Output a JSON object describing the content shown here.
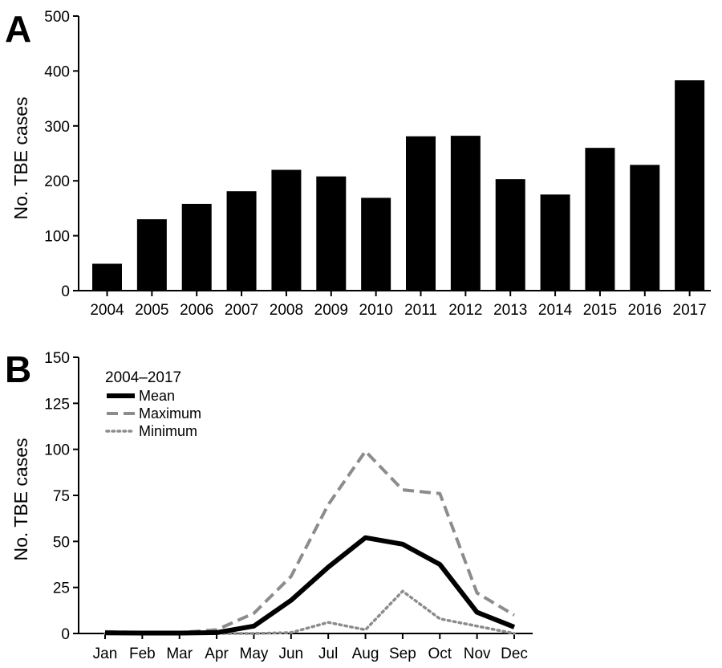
{
  "chart_data": [
    {
      "panel": "A",
      "type": "bar",
      "title": "",
      "xlabel": "",
      "ylabel": "No. TBE cases",
      "ylim": [
        0,
        500
      ],
      "yticks": [
        0,
        100,
        200,
        300,
        400,
        500
      ],
      "categories": [
        "2004",
        "2005",
        "2006",
        "2007",
        "2008",
        "2009",
        "2010",
        "2011",
        "2012",
        "2013",
        "2014",
        "2015",
        "2016",
        "2017"
      ],
      "values": [
        49,
        130,
        158,
        181,
        220,
        208,
        169,
        281,
        282,
        203,
        175,
        260,
        229,
        383
      ],
      "bar_color": "#000000",
      "grid": false,
      "legend": "none"
    },
    {
      "panel": "B",
      "type": "line",
      "title": "",
      "xlabel": "",
      "ylabel": "No. TBE cases",
      "ylim": [
        0,
        150
      ],
      "yticks": [
        0,
        25,
        50,
        75,
        100,
        125,
        150
      ],
      "categories": [
        "Jan",
        "Feb",
        "Mar",
        "Apr",
        "May",
        "Jun",
        "Jul",
        "Aug",
        "Sep",
        "Oct",
        "Nov",
        "Dec"
      ],
      "legend_title": "2004–2017",
      "legend_position": "top-left",
      "grid": false,
      "series": [
        {
          "name": "Mean",
          "style": "solid",
          "color": "#000000",
          "values": [
            0.3,
            0.2,
            0.2,
            0.5,
            4,
            18,
            36,
            52,
            48.5,
            37.5,
            11.5,
            3.5
          ]
        },
        {
          "name": "Maximum",
          "style": "dashed",
          "color": "#8c8c8c",
          "values": [
            1,
            0.5,
            0.5,
            2,
            11,
            31,
            70,
            99,
            78,
            76,
            22,
            10
          ]
        },
        {
          "name": "Minimum",
          "style": "dotted",
          "color": "#8c8c8c",
          "values": [
            0,
            0,
            0,
            0,
            0,
            0.5,
            6,
            2,
            23,
            8,
            4,
            0
          ]
        }
      ]
    }
  ]
}
